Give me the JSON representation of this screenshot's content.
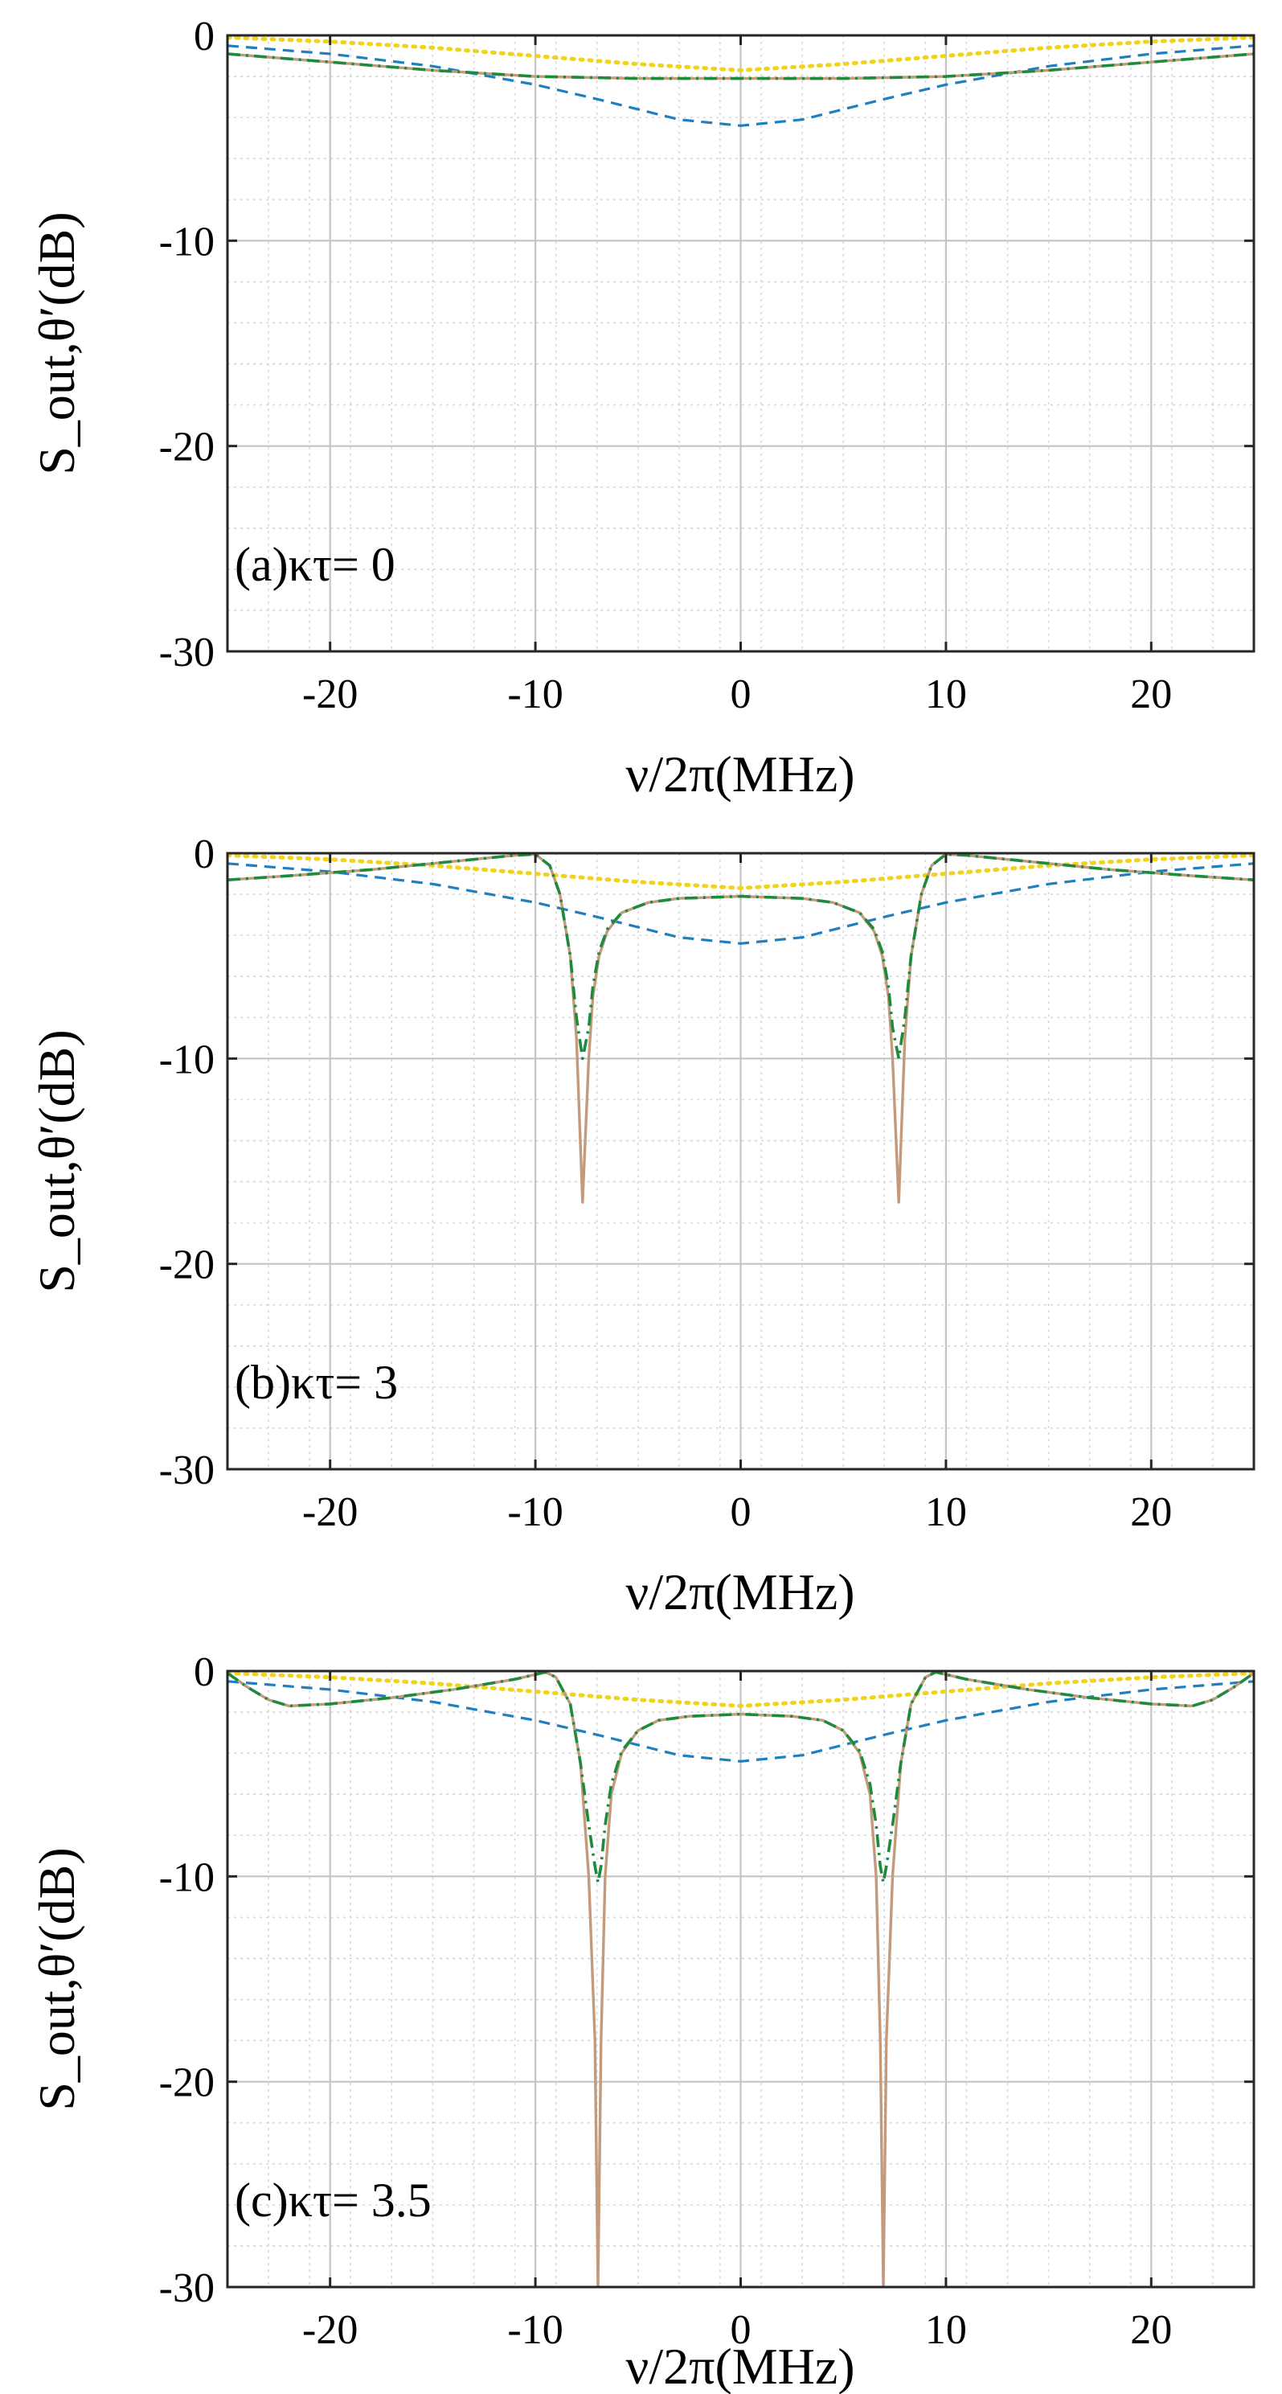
{
  "chart_data": [
    {
      "type": "line",
      "panel_label": "(a)κτ= 0",
      "xlabel": "ν/2π(MHz)",
      "ylabel": "S_out,θ′(dB)",
      "xlim": [
        -25,
        25
      ],
      "ylim": [
        -30,
        0
      ],
      "xticks": [
        -20,
        -10,
        0,
        10,
        20
      ],
      "yticks": [
        0,
        -10,
        -20,
        -30
      ],
      "grid": true,
      "series": [
        {
          "name": "blue-dashed",
          "color": "#1f7fbf",
          "style": "dashed",
          "x": [
            -25,
            -20,
            -15,
            -10,
            -7,
            -5,
            -3,
            0,
            3,
            5,
            7,
            10,
            15,
            20,
            25
          ],
          "y": [
            -0.5,
            -0.9,
            -1.5,
            -2.4,
            -3.1,
            -3.6,
            -4.1,
            -4.4,
            -4.1,
            -3.6,
            -3.1,
            -2.4,
            -1.5,
            -0.9,
            -0.5
          ]
        },
        {
          "name": "yellow-dotted",
          "color": "#f2d31b",
          "style": "dotted",
          "x": [
            -25,
            -20,
            -15,
            -10,
            -5,
            0,
            5,
            10,
            15,
            20,
            25
          ],
          "y": [
            -0.1,
            -0.3,
            -0.6,
            -1.0,
            -1.4,
            -1.7,
            -1.4,
            -1.0,
            -0.6,
            -0.3,
            -0.1
          ]
        },
        {
          "name": "orange-solid",
          "color": "#c49a7c",
          "style": "solid",
          "x": [
            -25,
            -20,
            -15,
            -10,
            -5,
            0,
            5,
            10,
            15,
            20,
            25
          ],
          "y": [
            -0.9,
            -1.3,
            -1.7,
            -2.0,
            -2.1,
            -2.1,
            -2.1,
            -2.0,
            -1.7,
            -1.3,
            -0.9
          ]
        },
        {
          "name": "green-dashdot",
          "color": "#1e8a3c",
          "style": "dashdot",
          "x": [
            -25,
            -20,
            -15,
            -10,
            -5,
            0,
            5,
            10,
            15,
            20,
            25
          ],
          "y": [
            -0.9,
            -1.3,
            -1.7,
            -2.0,
            -2.1,
            -2.1,
            -2.1,
            -2.0,
            -1.7,
            -1.3,
            -0.9
          ]
        }
      ]
    },
    {
      "type": "line",
      "panel_label": "(b)κτ= 3",
      "xlabel": "ν/2π(MHz)",
      "ylabel": "S_out,θ′(dB)",
      "xlim": [
        -25,
        25
      ],
      "ylim": [
        -30,
        0
      ],
      "xticks": [
        -20,
        -10,
        0,
        10,
        20
      ],
      "yticks": [
        0,
        -10,
        -20,
        -30
      ],
      "grid": true,
      "series": [
        {
          "name": "blue-dashed",
          "color": "#1f7fbf",
          "style": "dashed",
          "x": [
            -25,
            -20,
            -15,
            -10,
            -7,
            -5,
            -3,
            0,
            3,
            5,
            7,
            10,
            15,
            20,
            25
          ],
          "y": [
            -0.5,
            -0.9,
            -1.5,
            -2.4,
            -3.1,
            -3.6,
            -4.1,
            -4.4,
            -4.1,
            -3.6,
            -3.1,
            -2.4,
            -1.5,
            -0.9,
            -0.5
          ]
        },
        {
          "name": "yellow-dotted",
          "color": "#f2d31b",
          "style": "dotted",
          "x": [
            -25,
            -20,
            -15,
            -10,
            -5,
            0,
            5,
            10,
            15,
            20,
            25
          ],
          "y": [
            -0.1,
            -0.3,
            -0.6,
            -1.0,
            -1.4,
            -1.7,
            -1.4,
            -1.0,
            -0.6,
            -0.3,
            -0.1
          ]
        },
        {
          "name": "orange-solid",
          "color": "#c49a7c",
          "style": "solid",
          "x": [
            -25,
            -22,
            -18,
            -14,
            -11,
            -10,
            -9.3,
            -8.8,
            -8.3,
            -8.0,
            -7.7,
            -7.4,
            -7.2,
            -6.9,
            -6.5,
            -5.8,
            -4.5,
            -3,
            0,
            3,
            4.5,
            5.8,
            6.5,
            6.9,
            7.2,
            7.4,
            7.7,
            8.0,
            8.3,
            8.8,
            9.3,
            10,
            11,
            14,
            18,
            22,
            25
          ],
          "y": [
            -1.3,
            -1.1,
            -0.8,
            -0.4,
            -0.1,
            -0.05,
            -0.6,
            -2.0,
            -5.0,
            -9.0,
            -17.0,
            -10.0,
            -7.0,
            -5.0,
            -3.8,
            -2.9,
            -2.4,
            -2.2,
            -2.1,
            -2.2,
            -2.4,
            -2.9,
            -3.8,
            -5.0,
            -7.0,
            -10.0,
            -17.0,
            -9.0,
            -5.0,
            -2.0,
            -0.6,
            -0.05,
            -0.1,
            -0.4,
            -0.8,
            -1.1,
            -1.3
          ]
        },
        {
          "name": "green-dashdot",
          "color": "#1e8a3c",
          "style": "dashdot",
          "x": [
            -25,
            -22,
            -18,
            -14,
            -11,
            -10,
            -9.3,
            -8.8,
            -8.3,
            -8.0,
            -7.7,
            -7.4,
            -7.2,
            -6.9,
            -6.5,
            -5.8,
            -4.5,
            -3,
            0,
            3,
            4.5,
            5.8,
            6.5,
            6.9,
            7.2,
            7.4,
            7.7,
            8.0,
            8.3,
            8.8,
            9.3,
            10,
            11,
            14,
            18,
            22,
            25
          ],
          "y": [
            -1.3,
            -1.1,
            -0.8,
            -0.4,
            -0.1,
            -0.05,
            -0.6,
            -2.0,
            -5.0,
            -8.0,
            -10.0,
            -8.5,
            -6.5,
            -4.8,
            -3.7,
            -2.9,
            -2.4,
            -2.2,
            -2.1,
            -2.2,
            -2.4,
            -2.9,
            -3.7,
            -4.8,
            -6.5,
            -8.5,
            -10.0,
            -8.0,
            -5.0,
            -2.0,
            -0.6,
            -0.05,
            -0.1,
            -0.4,
            -0.8,
            -1.1,
            -1.3
          ]
        }
      ]
    },
    {
      "type": "line",
      "panel_label": "(c)κτ= 3.5",
      "xlabel": "ν/2π(MHz)",
      "ylabel": "S_out,θ′(dB)",
      "xlim": [
        -25,
        25
      ],
      "ylim": [
        -30,
        0
      ],
      "xticks": [
        -20,
        -10,
        0,
        10,
        20
      ],
      "yticks": [
        0,
        -10,
        -20,
        -30
      ],
      "grid": true,
      "series": [
        {
          "name": "blue-dashed",
          "color": "#1f7fbf",
          "style": "dashed",
          "x": [
            -25,
            -20,
            -15,
            -10,
            -7,
            -5,
            -3,
            0,
            3,
            5,
            7,
            10,
            15,
            20,
            25
          ],
          "y": [
            -0.5,
            -0.9,
            -1.5,
            -2.4,
            -3.1,
            -3.6,
            -4.1,
            -4.4,
            -4.1,
            -3.6,
            -3.1,
            -2.4,
            -1.5,
            -0.9,
            -0.5
          ]
        },
        {
          "name": "yellow-dotted",
          "color": "#f2d31b",
          "style": "dotted",
          "x": [
            -25,
            -20,
            -15,
            -10,
            -5,
            0,
            5,
            10,
            15,
            20,
            25
          ],
          "y": [
            -0.1,
            -0.3,
            -0.6,
            -1.0,
            -1.4,
            -1.7,
            -1.4,
            -1.0,
            -0.6,
            -0.3,
            -0.1
          ]
        },
        {
          "name": "orange-solid",
          "color": "#c49a7c",
          "style": "solid",
          "x": [
            -25,
            -24,
            -23,
            -22,
            -20,
            -17,
            -14,
            -11,
            -9.5,
            -9.0,
            -8.3,
            -7.8,
            -7.4,
            -7.1,
            -6.95,
            -6.8,
            -6.6,
            -6.3,
            -5.8,
            -5.0,
            -4.0,
            -2.5,
            0,
            2.5,
            4.0,
            5.0,
            5.8,
            6.3,
            6.6,
            6.8,
            6.95,
            7.1,
            7.4,
            7.8,
            8.3,
            9.0,
            9.5,
            11,
            14,
            17,
            20,
            22,
            23,
            24,
            25
          ],
          "y": [
            -0.1,
            -0.8,
            -1.4,
            -1.7,
            -1.6,
            -1.3,
            -0.9,
            -0.4,
            -0.05,
            -0.3,
            -1.6,
            -4.5,
            -10.0,
            -18.0,
            -30.0,
            -18.0,
            -10.0,
            -6.0,
            -4.0,
            -2.9,
            -2.4,
            -2.2,
            -2.1,
            -2.2,
            -2.4,
            -2.9,
            -4.0,
            -6.0,
            -10.0,
            -18.0,
            -30.0,
            -18.0,
            -10.0,
            -4.5,
            -1.6,
            -0.3,
            -0.05,
            -0.4,
            -0.9,
            -1.3,
            -1.6,
            -1.7,
            -1.4,
            -0.8,
            -0.1
          ]
        },
        {
          "name": "green-dashdot",
          "color": "#1e8a3c",
          "style": "dashdot",
          "x": [
            -25,
            -24,
            -23,
            -22,
            -20,
            -17,
            -14,
            -11,
            -9.5,
            -9.0,
            -8.3,
            -7.8,
            -7.4,
            -7.1,
            -6.95,
            -6.8,
            -6.6,
            -6.3,
            -5.8,
            -5.0,
            -4.0,
            -2.5,
            0,
            2.5,
            4.0,
            5.0,
            5.8,
            6.3,
            6.6,
            6.8,
            6.95,
            7.1,
            7.4,
            7.8,
            8.3,
            9.0,
            9.5,
            11,
            14,
            17,
            20,
            22,
            23,
            24,
            25
          ],
          "y": [
            -0.1,
            -0.8,
            -1.4,
            -1.7,
            -1.6,
            -1.3,
            -0.9,
            -0.4,
            -0.05,
            -0.3,
            -1.6,
            -4.5,
            -7.5,
            -9.5,
            -10.3,
            -9.5,
            -7.5,
            -5.5,
            -3.9,
            -2.9,
            -2.4,
            -2.2,
            -2.1,
            -2.2,
            -2.4,
            -2.9,
            -3.9,
            -5.5,
            -7.5,
            -9.5,
            -10.3,
            -9.5,
            -7.5,
            -4.5,
            -1.6,
            -0.3,
            -0.05,
            -0.4,
            -0.9,
            -1.3,
            -1.6,
            -1.7,
            -1.4,
            -0.8,
            -0.1
          ]
        }
      ]
    }
  ]
}
